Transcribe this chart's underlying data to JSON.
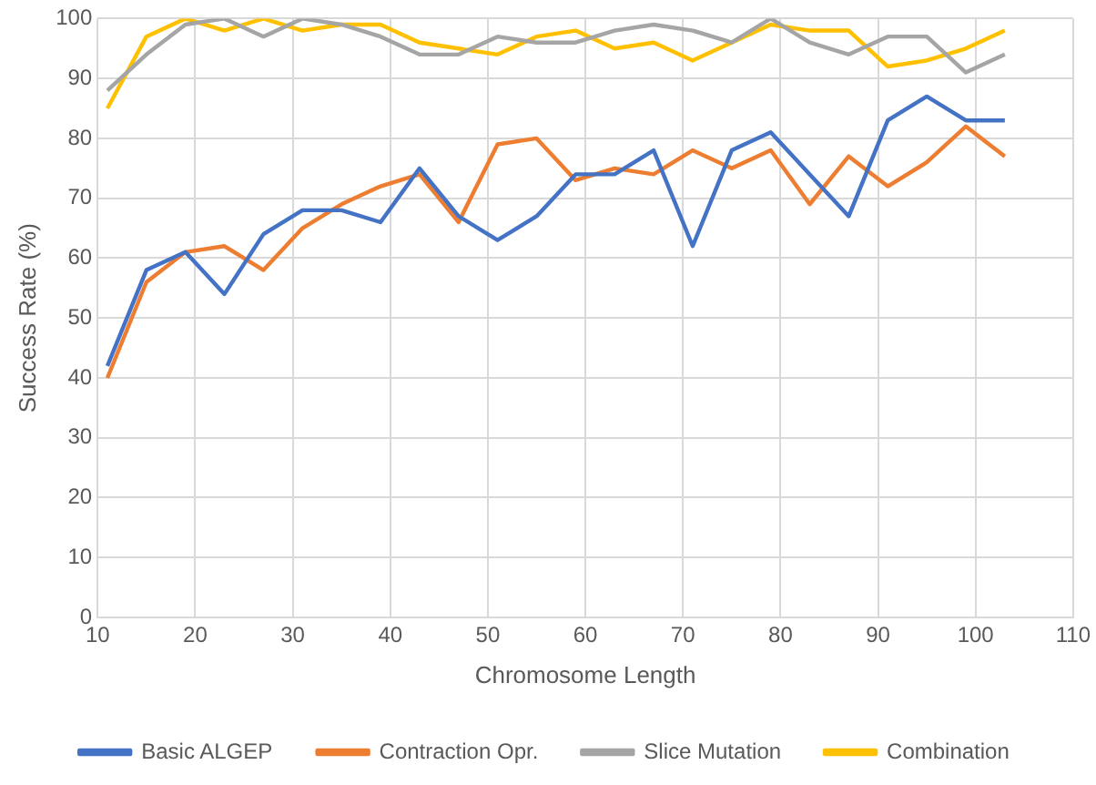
{
  "chart_data": {
    "type": "line",
    "xlabel": "Chromosome Length",
    "ylabel": "Success Rate (%)",
    "x": [
      11,
      15,
      19,
      23,
      27,
      31,
      35,
      39,
      43,
      47,
      51,
      55,
      59,
      63,
      67,
      71,
      75,
      79,
      83,
      87,
      91,
      95,
      99,
      103
    ],
    "xlim": [
      10,
      110
    ],
    "xticks": [
      10,
      20,
      30,
      40,
      50,
      60,
      70,
      80,
      90,
      100,
      110
    ],
    "ylim": [
      0,
      100
    ],
    "yticks": [
      0,
      10,
      20,
      30,
      40,
      50,
      60,
      70,
      80,
      90,
      100
    ],
    "grid": true,
    "legend": "bottom",
    "marker": "none",
    "line_style": "solid",
    "series": [
      {
        "name": "Basic ALGEP",
        "color": "#4472c4",
        "values": [
          42,
          58,
          61,
          54,
          64,
          68,
          68,
          66,
          75,
          67,
          63,
          67,
          74,
          74,
          78,
          62,
          78,
          81,
          74,
          67,
          83,
          87,
          83,
          83
        ]
      },
      {
        "name": "Contraction Opr.",
        "color": "#ed7d31",
        "values": [
          40,
          56,
          61,
          62,
          58,
          65,
          69,
          72,
          74,
          66,
          79,
          80,
          73,
          75,
          74,
          78,
          75,
          78,
          69,
          77,
          72,
          76,
          82,
          77
        ]
      },
      {
        "name": "Slice Mutation",
        "color": "#a5a5a5",
        "values": [
          88,
          94,
          99,
          100,
          97,
          100,
          99,
          97,
          94,
          94,
          97,
          96,
          96,
          98,
          99,
          98,
          96,
          100,
          96,
          94,
          97,
          97,
          91,
          94
        ]
      },
      {
        "name": "Combination",
        "color": "#ffc000",
        "values": [
          85,
          97,
          100,
          98,
          100,
          98,
          99,
          99,
          96,
          95,
          94,
          97,
          98,
          95,
          96,
          93,
          96,
          99,
          98,
          98,
          92,
          93,
          95,
          98
        ]
      }
    ]
  }
}
